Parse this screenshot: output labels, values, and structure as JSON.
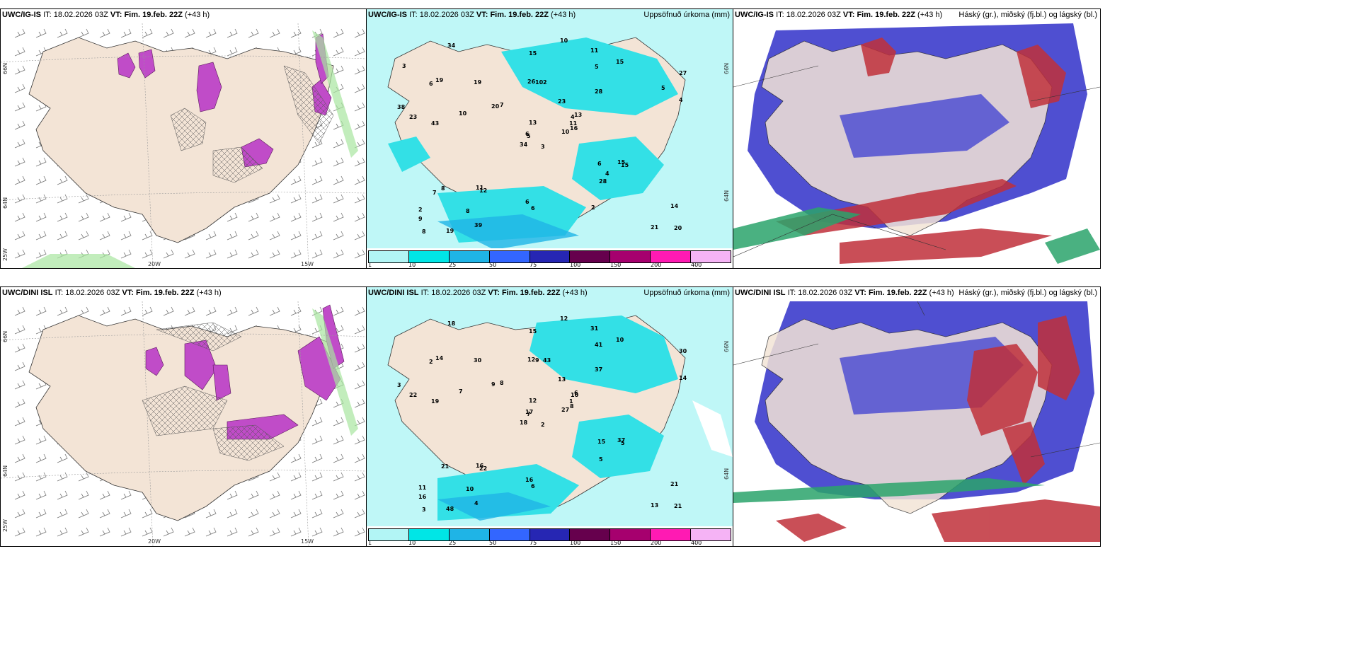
{
  "rows": [
    {
      "model": "UWC/IG-IS",
      "it_label": "IT:",
      "it_time": "18.02.2026 03Z",
      "vt_label": "VT:",
      "vt_time": "Fim. 19.feb. 22Z",
      "lead": "(+43 h)",
      "precip_title": "Uppsöfnuð úrkoma (mm)",
      "cloud_title": "Háský (gr.), miðský (fj.bl.) og lágský (bl.)",
      "lat_labels": [
        "66N",
        "64N"
      ],
      "lon_labels": [
        "20W",
        "15W",
        "25W"
      ],
      "precip_values": [
        "3",
        "6",
        "5",
        "2",
        "4",
        "12",
        "11",
        "2",
        "5",
        "10",
        "34",
        "20",
        "43",
        "27",
        "34",
        "28",
        "19",
        "26",
        "23",
        "8",
        "7",
        "9",
        "8",
        "10",
        "13",
        "15",
        "19",
        "15",
        "23",
        "6",
        "4",
        "6",
        "6",
        "13",
        "19",
        "15",
        "11",
        "21",
        "14",
        "15",
        "10",
        "20",
        "10",
        "28",
        "39",
        "38",
        "11",
        "8",
        "6",
        "16",
        "7",
        "5",
        "3",
        "4",
        "2"
      ]
    },
    {
      "model": "UWC/DINI ISL",
      "it_label": "IT:",
      "it_time": "18.02.2026 03Z",
      "vt_label": "VT:",
      "vt_time": "Fim. 19.feb. 22Z",
      "lead": "(+43 h)",
      "precip_title": "Uppsöfnuð úrkoma (mm)",
      "cloud_title": "Háský (gr.), miðský (fj.bl.) og lágský (bl.)",
      "lat_labels": [
        "66N",
        "64N"
      ],
      "lon_labels": [
        "20W",
        "15W",
        "25W"
      ],
      "precip_values": [
        "2",
        "2",
        "7",
        "11",
        "10",
        "22",
        "31",
        "43",
        "41",
        "27",
        "18",
        "21",
        "19",
        "30",
        "18",
        "37",
        "48",
        "12",
        "13",
        "21",
        "8",
        "16",
        "10",
        "9",
        "6",
        "5",
        "14",
        "15",
        "22",
        "15",
        "14",
        "17",
        "16",
        "12",
        "30",
        "10",
        "16",
        "13",
        "21",
        "37",
        "12",
        "9",
        "7",
        "5",
        "4",
        "3",
        "1",
        "3",
        "6",
        "8"
      ]
    }
  ],
  "colorbar": {
    "ticks": [
      "1",
      "10",
      "25",
      "50",
      "75",
      "100",
      "150",
      "200",
      "400"
    ],
    "colors": [
      "#b2f5f5",
      "#00e6e6",
      "#1fb4e6",
      "#3366ff",
      "#2626b3",
      "#66004d",
      "#a6006e",
      "#ff1ab3",
      "#f5b3f5"
    ]
  },
  "colors": {
    "land": "#f3e4d6",
    "sea_light": "#bff7f7",
    "precip_med": "#33e0e6",
    "cloud_blue": "#4f4fd1",
    "cloud_red": "#c0303a",
    "cloud_green": "#2aa36b",
    "snow_magenta": "#c04cc8"
  }
}
